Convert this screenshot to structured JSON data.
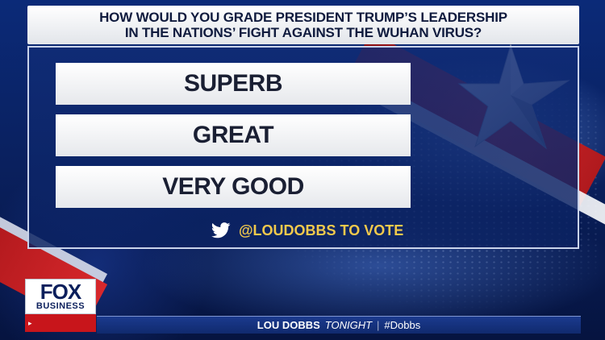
{
  "poll": {
    "question_line1": "HOW WOULD YOU GRADE PRESIDENT TRUMP’S LEADERSHIP",
    "question_line2": "IN THE NATIONS’ FIGHT AGAINST THE WUHAN VIRUS?",
    "options": [
      {
        "label": "SUPERB"
      },
      {
        "label": "GREAT"
      },
      {
        "label": "VERY GOOD"
      }
    ],
    "cta": "@LOUDOBBS TO VOTE",
    "cta_icon": "twitter-bird-icon"
  },
  "logo": {
    "line1": "FOX",
    "line2": "BUSINESS",
    "bug": "▸"
  },
  "ticker": {
    "show": "LOU DOBBS",
    "sub": "TONIGHT",
    "sep": "|",
    "hashtag": "#Dobbs"
  },
  "colors": {
    "accent_gold": "#f2c94c",
    "navy": "#0a2160",
    "red": "#c8151b"
  }
}
